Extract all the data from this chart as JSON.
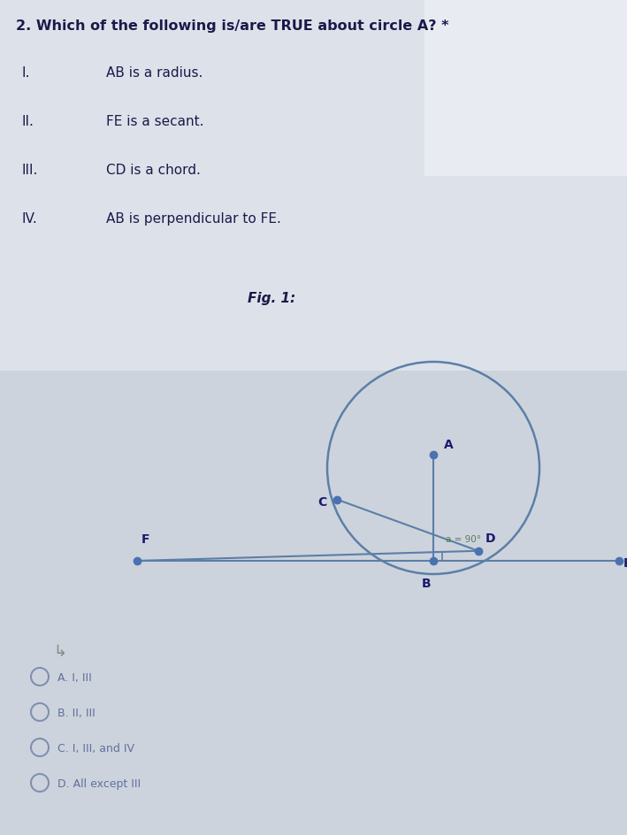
{
  "bg_color": "#cdd3dc",
  "top_bg": "#e8ecf0",
  "title_text": "2. Which of the following is/are TRUE about circle A? *",
  "title_fontsize": 11.5,
  "items": [
    {
      "num": "I.",
      "text": "AB is a radius."
    },
    {
      "num": "II.",
      "text": "FE is a secant."
    },
    {
      "num": "III.",
      "text": "CD is a chord."
    },
    {
      "num": "IV.",
      "text": "AB is perpendicular to FE."
    }
  ],
  "fig_label": "Fig. 1:",
  "choices": [
    "A. I, III",
    "B. II, III",
    "C. I, III, and IV",
    "D. All except III"
  ],
  "circle_color": "#5b7fa8",
  "line_color": "#5b7fa8",
  "dot_color": "#4a72b0",
  "label_color": "#1a1a6e",
  "angle_label": "a = 90°",
  "label_fontsize": 10,
  "dot_size": 6,
  "choice_color": "#6070a0",
  "choice_fontsize": 9
}
